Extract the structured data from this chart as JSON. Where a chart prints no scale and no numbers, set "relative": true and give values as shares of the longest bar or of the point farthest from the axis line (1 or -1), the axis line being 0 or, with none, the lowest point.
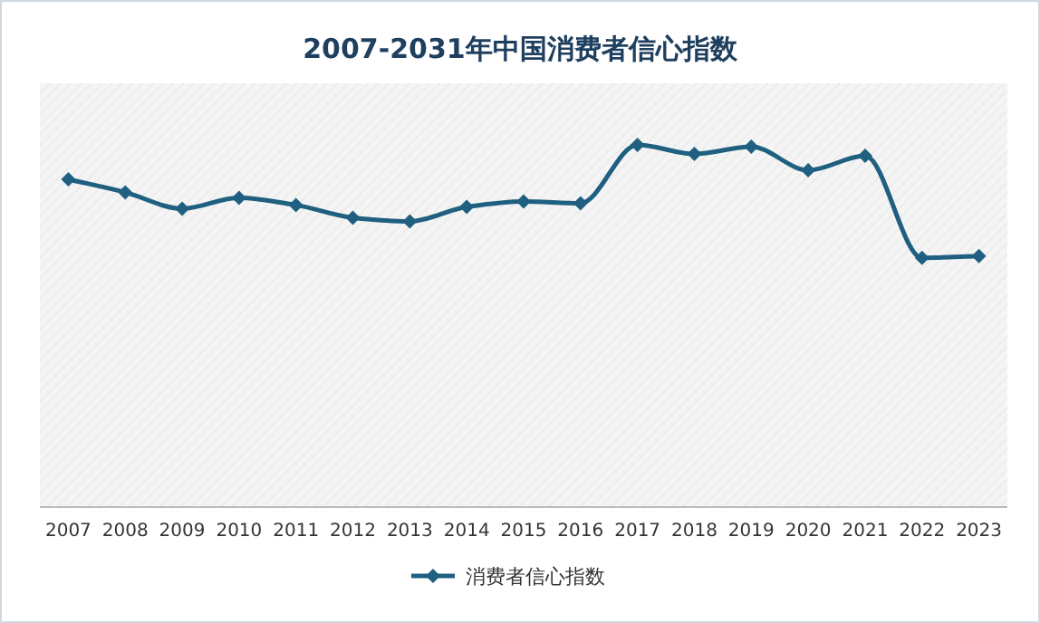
{
  "chart_data": {
    "type": "line",
    "title": "2007-2031年中国消费者信心指数",
    "relative": true,
    "categories": [
      "2007",
      "2008",
      "2009",
      "2010",
      "2011",
      "2012",
      "2013",
      "2014",
      "2015",
      "2016",
      "2017",
      "2018",
      "2019",
      "2020",
      "2021",
      "2022",
      "2023"
    ],
    "series": [
      {
        "name": "消费者信心指数",
        "color": "#1f5f80",
        "values": [
          0.905,
          0.869,
          0.824,
          0.854,
          0.834,
          0.799,
          0.789,
          0.829,
          0.844,
          0.839,
          1,
          0.975,
          0.995,
          0.93,
          0.97,
          0.688,
          0.693
        ]
      }
    ],
    "legend": "bottom",
    "marker": "diamond",
    "line_style": "solid"
  }
}
